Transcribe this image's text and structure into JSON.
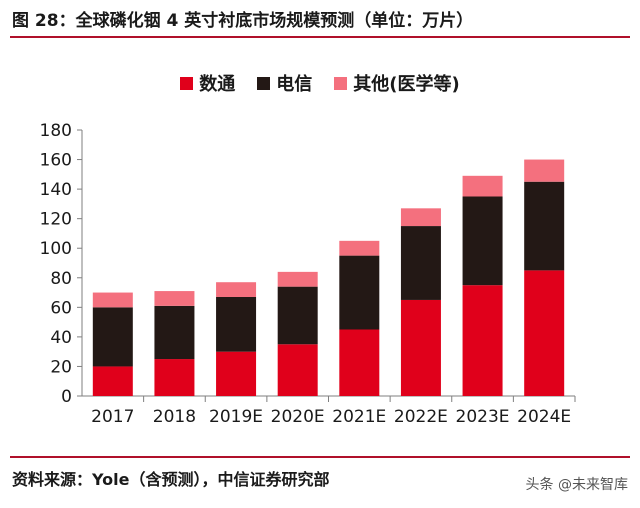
{
  "title": "图 28：全球磷化铟 4 英寸衬底市场规模预测（单位：万片）",
  "source": "资料来源：Yole（含预测），中信证券研究部",
  "watermark": "头条 @未来智库",
  "chart_data": {
    "type": "bar",
    "stacked": true,
    "categories": [
      "2017",
      "2018",
      "2019E",
      "2020E",
      "2021E",
      "2022E",
      "2023E",
      "2024E"
    ],
    "series": [
      {
        "name": "数通",
        "color": "#e0001b",
        "values": [
          20,
          25,
          30,
          35,
          45,
          65,
          75,
          85
        ]
      },
      {
        "name": "电信",
        "color": "#231815",
        "values": [
          40,
          36,
          37,
          39,
          50,
          50,
          60,
          60
        ]
      },
      {
        "name": "其他(医学等)",
        "color": "#f4707e",
        "values": [
          10,
          10,
          10,
          10,
          10,
          12,
          14,
          15
        ]
      }
    ],
    "ylim": [
      0,
      180
    ],
    "yticks": [
      0,
      20,
      40,
      60,
      80,
      100,
      120,
      140,
      160,
      180
    ],
    "grid": false,
    "legend_position": "top"
  }
}
